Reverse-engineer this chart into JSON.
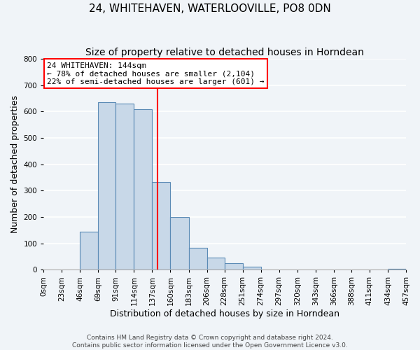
{
  "title": "24, WHITEHAVEN, WATERLOOVILLE, PO8 0DN",
  "subtitle": "Size of property relative to detached houses in Horndean",
  "xlabel": "Distribution of detached houses by size in Horndean",
  "ylabel": "Number of detached properties",
  "footer_line1": "Contains HM Land Registry data © Crown copyright and database right 2024.",
  "footer_line2": "Contains public sector information licensed under the Open Government Licence v3.0.",
  "bin_edges": [
    0,
    23,
    46,
    69,
    91,
    114,
    137,
    160,
    183,
    206,
    228,
    251,
    274,
    297,
    320,
    343,
    366,
    388,
    411,
    434,
    457
  ],
  "bin_labels": [
    "0sqm",
    "23sqm",
    "46sqm",
    "69sqm",
    "91sqm",
    "114sqm",
    "137sqm",
    "160sqm",
    "183sqm",
    "206sqm",
    "228sqm",
    "251sqm",
    "274sqm",
    "297sqm",
    "320sqm",
    "343sqm",
    "366sqm",
    "388sqm",
    "411sqm",
    "434sqm",
    "457sqm"
  ],
  "counts": [
    0,
    0,
    143,
    635,
    631,
    608,
    332,
    200,
    84,
    46,
    26,
    12,
    0,
    0,
    0,
    0,
    0,
    0,
    0,
    3
  ],
  "bar_color": "#c8d8e8",
  "bar_edge_color": "#5a8ab5",
  "property_line_x": 144,
  "vline_color": "red",
  "annotation_title": "24 WHITEHAVEN: 144sqm",
  "annotation_line1": "← 78% of detached houses are smaller (2,104)",
  "annotation_line2": "22% of semi-detached houses are larger (601) →",
  "ylim": [
    0,
    800
  ],
  "yticks": [
    0,
    100,
    200,
    300,
    400,
    500,
    600,
    700,
    800
  ],
  "background_color": "#f0f4f8",
  "grid_color": "white",
  "title_fontsize": 11,
  "subtitle_fontsize": 10,
  "axis_label_fontsize": 9,
  "tick_fontsize": 7.5,
  "footer_fontsize": 6.5
}
